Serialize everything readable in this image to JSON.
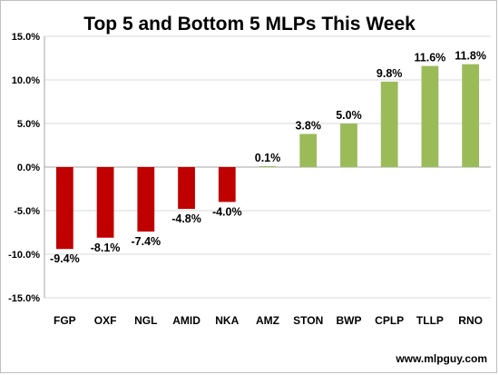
{
  "chart_data": {
    "type": "bar",
    "title": "Top 5 and Bottom 5 MLPs This Week",
    "categories": [
      "FGP",
      "OXF",
      "NGL",
      "AMID",
      "NKA",
      "AMZ",
      "STON",
      "BWP",
      "CPLP",
      "TLLP",
      "RNO"
    ],
    "values": [
      -9.4,
      -8.1,
      -7.4,
      -4.8,
      -4.0,
      0.1,
      3.8,
      5.0,
      9.8,
      11.6,
      11.8
    ],
    "data_labels": [
      "-9.4%",
      "-8.1%",
      "-7.4%",
      "-4.8%",
      "-4.0%",
      "0.1%",
      "3.8%",
      "5.0%",
      "9.8%",
      "11.6%",
      "11.8%"
    ],
    "y_ticks": [
      15,
      10,
      5,
      0,
      -5,
      -10,
      -15
    ],
    "y_tick_labels": [
      "15.0%",
      "10.0%",
      "5.0%",
      "0.0%",
      "-5.0%",
      "-10.0%",
      "-15.0%"
    ],
    "ylim": [
      -15,
      15
    ],
    "grid": true,
    "legend": "none",
    "colors": {
      "negative": "#c00000",
      "positive": "#9bbb59",
      "grid": "#d9d9d9",
      "axis": "#a6a6a6"
    }
  },
  "credit": "www.mlpguy.com"
}
